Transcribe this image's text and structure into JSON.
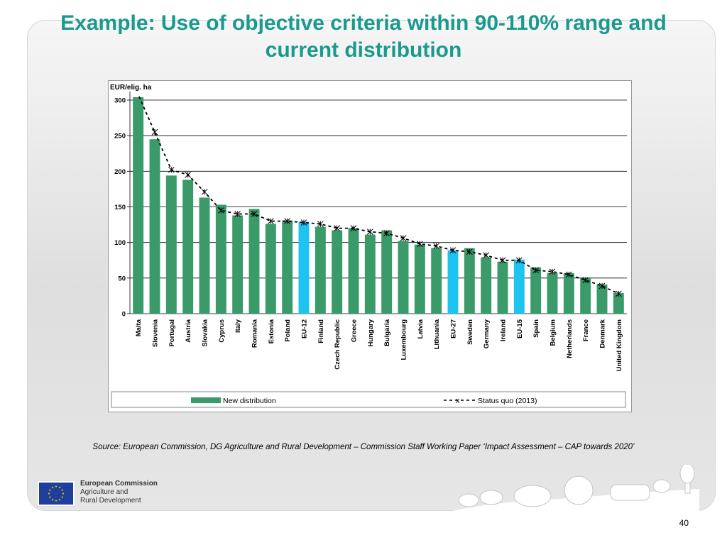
{
  "slide": {
    "title": "Example: Use of objective criteria within 90-110% range and current distribution",
    "source": "Source: European Commission, DG Agriculture and Rural Development – Commission Staff Working Paper ‘Impact Assessment – CAP towards 2020’",
    "org": "European Commission",
    "dept_line1": "Agriculture and",
    "dept_line2": "Rural Development",
    "page_number": "40"
  },
  "colors": {
    "accent_title": "#1a9a8e",
    "bar": "#3a9a6a",
    "bar_highlight": "#1fc3ef",
    "line": "#000000"
  },
  "chart_data": {
    "type": "bar",
    "title": "",
    "ylabel": "EUR/elig. ha",
    "xlabel": "",
    "ylim": [
      0,
      300
    ],
    "yticks": [
      0,
      50,
      100,
      150,
      200,
      250,
      300
    ],
    "grid": true,
    "legend_position": "bottom",
    "categories": [
      "Malta",
      "Slovenia",
      "Portugal",
      "Austria",
      "Slovakia",
      "Cyprus",
      "Italy",
      "Romania",
      "Estonia",
      "Poland",
      "EU-12",
      "Finland",
      "Czech Republic",
      "Greece",
      "Hungary",
      "Bulgaria",
      "Luxembourg",
      "Latvia",
      "Lithuania",
      "EU-27",
      "Sweden",
      "Germany",
      "Ireland",
      "EU-15",
      "Spain",
      "Belgium",
      "Netherlands",
      "France",
      "Denmark",
      "United Kingdom"
    ],
    "highlighted_categories": [
      "EU-12",
      "EU-27",
      "EU-15"
    ],
    "series": [
      {
        "name": "New distribution",
        "kind": "bar",
        "values": [
          304,
          245,
          194,
          188,
          163,
          153,
          138,
          147,
          126,
          131,
          129,
          122,
          117,
          120,
          111,
          117,
          102,
          97,
          92,
          89,
          92,
          79,
          73,
          76,
          65,
          57,
          57,
          51,
          41,
          29
        ]
      },
      {
        "name": "Status quo (2013)",
        "kind": "line",
        "values": [
          null,
          255,
          202,
          195,
          171,
          145,
          140,
          140,
          130,
          130,
          128,
          126,
          120,
          120,
          115,
          113,
          106,
          98,
          95,
          89,
          87,
          82,
          75,
          75,
          61,
          59,
          55,
          47,
          39,
          28
        ]
      }
    ]
  }
}
